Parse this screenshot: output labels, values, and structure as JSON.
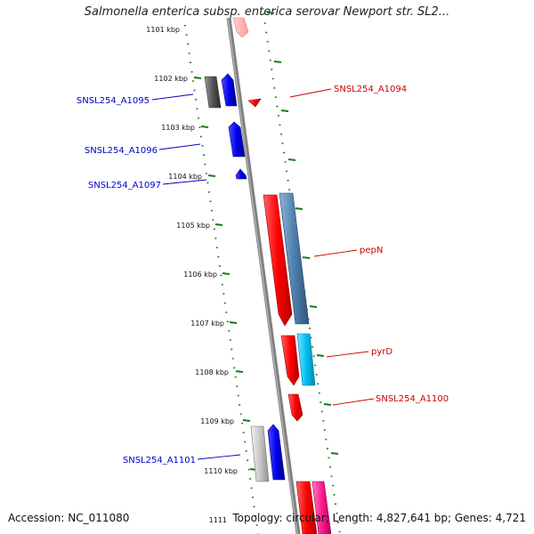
{
  "title": "Salmonella enterica subsp. enterica serovar Newport str. SL2...",
  "footer": {
    "accession": "Accession: NC_011080",
    "topology": "Topology: circular; Length: 4,827,641 bp; Genes: 4,721"
  },
  "ticks": [
    "1101 kbp",
    "1102 kbp",
    "1103 kbp",
    "1104 kbp",
    "1105 kbp",
    "1106 kbp",
    "1107 kbp",
    "1108 kbp",
    "1109 kbp",
    "1110 kbp",
    "1111"
  ],
  "gene_labels": {
    "left": [
      "SNSL254_A1095",
      "SNSL254_A1096",
      "SNSL254_A1097",
      "SNSL254_A1101"
    ],
    "right": [
      "SNSL254_A1094",
      "pepN",
      "pyrD",
      "SNSL254_A1100"
    ]
  },
  "colors": {
    "forward_label": "#0000cc",
    "reverse_label": "#cc0000",
    "backbone": "#808080",
    "tick": "#1a7a1a"
  }
}
